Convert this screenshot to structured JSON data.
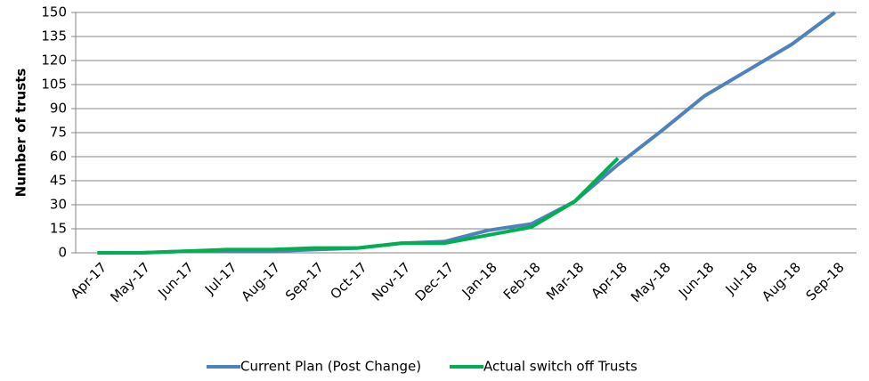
{
  "chart_data": {
    "type": "line",
    "y_label": "Number of trusts",
    "categories": [
      "Apr-17",
      "May-17",
      "Jun-17",
      "Jul-17",
      "Aug-17",
      "Sep-17",
      "Oct-17",
      "Nov-17",
      "Dec-17",
      "Jan-18",
      "Feb-18",
      "Mar-18",
      "Apr-18",
      "May-18",
      "Jun-18",
      "Jul-18",
      "Aug-18",
      "Sep-18"
    ],
    "series": [
      {
        "name": "Current Plan (Post Change)",
        "color": "#4f81bd",
        "values": [
          0,
          0,
          1,
          1,
          1,
          2,
          3,
          6,
          7,
          14,
          18,
          32,
          55,
          76,
          98,
          114,
          130,
          150
        ]
      },
      {
        "name": "Actual switch off Trusts",
        "color": "#00b050",
        "values": [
          0,
          0,
          1,
          2,
          2,
          3,
          3,
          6,
          6,
          11,
          16,
          32,
          59,
          null,
          null,
          null,
          null,
          null
        ]
      }
    ],
    "ylim": [
      0,
      150
    ],
    "yticks": [
      0,
      15,
      30,
      45,
      60,
      75,
      90,
      105,
      120,
      135,
      150
    ],
    "grid": true
  }
}
